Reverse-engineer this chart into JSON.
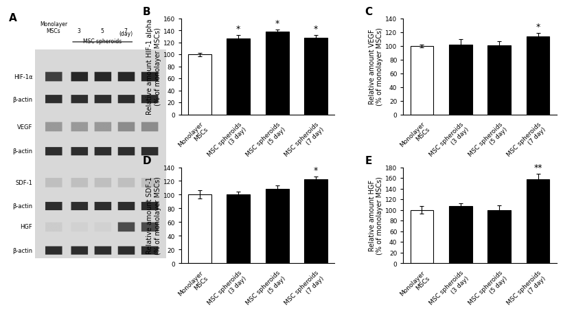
{
  "panel_B": {
    "title": "B",
    "ylabel": "Relative amount HIF-1 alpha\n(% of monolayer MSCs)",
    "ylim": [
      0,
      160
    ],
    "yticks": [
      0,
      20,
      40,
      60,
      80,
      100,
      120,
      140,
      160
    ],
    "categories": [
      "Monolayer\nMSCs",
      "MSC spheroids\n(3 day)",
      "MSC spheroids\n(5 day)",
      "MSC spheroids\n(7 day)"
    ],
    "values": [
      100,
      127,
      138,
      128
    ],
    "errors": [
      3,
      5,
      4,
      4
    ],
    "bar_colors": [
      "white",
      "black",
      "black",
      "black"
    ],
    "bar_edgecolors": [
      "black",
      "black",
      "black",
      "black"
    ],
    "significance": [
      "",
      "*",
      "*",
      "*"
    ]
  },
  "panel_C": {
    "title": "C",
    "ylabel": "Relative amount VEGF\n(% of monolayer MSCs)",
    "ylim": [
      0,
      140
    ],
    "yticks": [
      0,
      20,
      40,
      60,
      80,
      100,
      120,
      140
    ],
    "categories": [
      "Monolayer\nMSCs",
      "MSC spheroids\n(3 day)",
      "MSC spheroids\n(5 day)",
      "MSC spheroids\n(7 day)"
    ],
    "values": [
      100,
      102,
      101,
      114
    ],
    "errors": [
      2,
      8,
      6,
      5
    ],
    "bar_colors": [
      "white",
      "black",
      "black",
      "black"
    ],
    "bar_edgecolors": [
      "black",
      "black",
      "black",
      "black"
    ],
    "significance": [
      "",
      "",
      "",
      "*"
    ]
  },
  "panel_D": {
    "title": "D",
    "ylabel": "Relative amount SDF-1\n(% of monolayer MSCs)",
    "ylim": [
      0,
      140
    ],
    "yticks": [
      0,
      20,
      40,
      60,
      80,
      100,
      120,
      140
    ],
    "categories": [
      "Monolayer\nMSCs",
      "MSC spheroids\n(3 day)",
      "MSC spheroids\n(5 day)",
      "MSC spheroids\n(7 day)"
    ],
    "values": [
      100,
      100,
      108,
      122
    ],
    "errors": [
      6,
      4,
      5,
      4
    ],
    "bar_colors": [
      "white",
      "black",
      "black",
      "black"
    ],
    "bar_edgecolors": [
      "black",
      "black",
      "black",
      "black"
    ],
    "significance": [
      "",
      "",
      "",
      "*"
    ]
  },
  "panel_E": {
    "title": "E",
    "ylabel": "Relative amount HGF\n(% of monolayer MSCs)",
    "ylim": [
      0,
      180
    ],
    "yticks": [
      0,
      20,
      40,
      60,
      80,
      100,
      120,
      140,
      160,
      180
    ],
    "categories": [
      "Monolayer\nMSCs",
      "MSC spheroids\n(3 day)",
      "MSC spheroids\n(5 day)",
      "MSC spheroids\n(7 day)"
    ],
    "values": [
      100,
      107,
      100,
      158
    ],
    "errors": [
      7,
      5,
      8,
      10
    ],
    "bar_colors": [
      "white",
      "black",
      "black",
      "black"
    ],
    "bar_edgecolors": [
      "black",
      "black",
      "black",
      "black"
    ],
    "significance": [
      "",
      "",
      "",
      "**"
    ]
  },
  "panel_A_label": "A",
  "figure_bg": "white",
  "bar_width": 0.6,
  "tick_fontsize": 6.5,
  "label_fontsize": 7,
  "title_fontsize": 11,
  "sig_fontsize": 9
}
